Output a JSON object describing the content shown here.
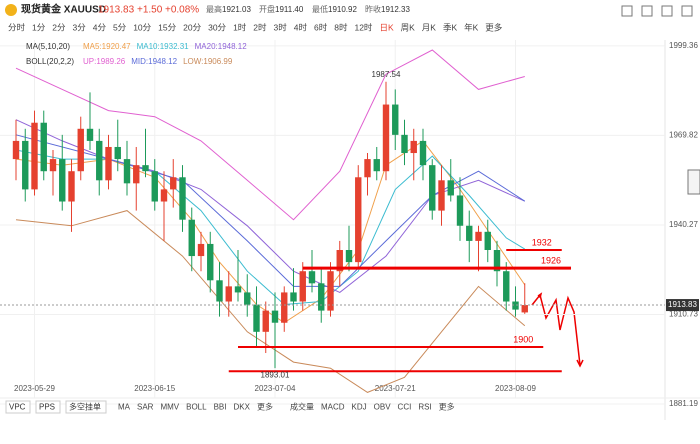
{
  "header": {
    "name": "现货黄金 XAUUSD",
    "price": "1913.83",
    "change": "+1.50",
    "pct": "+0.08%",
    "stats": [
      [
        "最高",
        "1921.03"
      ],
      [
        "开盘",
        "1911.40"
      ],
      [
        "最低",
        "1910.92"
      ],
      [
        "昨收",
        "1912.33"
      ]
    ]
  },
  "periods": [
    "分时",
    "1分",
    "2分",
    "3分",
    "4分",
    "5分",
    "10分",
    "15分",
    "20分",
    "30分",
    "1时",
    "2时",
    "3时",
    "4时",
    "6时",
    "8时",
    "12时",
    "日K",
    "周K",
    "月K",
    "季K",
    "年K",
    "更多"
  ],
  "active_period": "日K",
  "bottom_left": [
    "VPC",
    "PPS",
    "多空挂单"
  ],
  "bottom_main": [
    "MA",
    "SAR",
    "MMV",
    "BOLL",
    "BBI",
    "DKX",
    "更多"
  ],
  "bottom_sub": [
    "成交量",
    "MACD",
    "KDJ",
    "OBV",
    "CCI",
    "RSI",
    "更多"
  ],
  "chart_data": {
    "type": "candlestick",
    "legend_groups": [
      "MA(5,10,20)",
      "BOLL(20,2,2)"
    ],
    "categories": [
      null,
      null,
      "2023-05-29",
      null,
      null,
      null,
      null,
      null,
      null,
      null,
      null,
      null,
      null,
      null,
      null,
      "2023-06-15",
      null,
      null,
      null,
      null,
      null,
      null,
      null,
      null,
      null,
      null,
      null,
      null,
      "2023-07-04",
      null,
      null,
      null,
      null,
      null,
      null,
      null,
      null,
      null,
      null,
      null,
      null,
      "2023-07-21",
      null,
      null,
      null,
      null,
      null,
      null,
      null,
      null,
      null,
      null,
      null,
      null,
      "2023-08-09",
      null
    ],
    "ohlc": [
      [
        1962,
        1975,
        1955,
        1968
      ],
      [
        1968,
        1972,
        1948,
        1952
      ],
      [
        1952,
        1978,
        1950,
        1974
      ],
      [
        1974,
        1978,
        1955,
        1958
      ],
      [
        1958,
        1965,
        1950,
        1962
      ],
      [
        1962,
        1970,
        1945,
        1948
      ],
      [
        1948,
        1962,
        1938,
        1958
      ],
      [
        1958,
        1976,
        1955,
        1972
      ],
      [
        1972,
        1984,
        1965,
        1968
      ],
      [
        1968,
        1972,
        1950,
        1955
      ],
      [
        1955,
        1970,
        1952,
        1966
      ],
      [
        1966,
        1975,
        1958,
        1962
      ],
      [
        1962,
        1968,
        1950,
        1954
      ],
      [
        1954,
        1966,
        1945,
        1960
      ],
      [
        1960,
        1972,
        1956,
        1958
      ],
      [
        1958,
        1962,
        1945,
        1948
      ],
      [
        1948,
        1958,
        1935,
        1952
      ],
      [
        1952,
        1962,
        1946,
        1956
      ],
      [
        1956,
        1960,
        1938,
        1942
      ],
      [
        1942,
        1946,
        1925,
        1930
      ],
      [
        1930,
        1938,
        1925,
        1934
      ],
      [
        1934,
        1938,
        1918,
        1922
      ],
      [
        1922,
        1928,
        1910,
        1915
      ],
      [
        1915,
        1925,
        1910,
        1920
      ],
      [
        1920,
        1932,
        1915,
        1918
      ],
      [
        1918,
        1924,
        1910,
        1914
      ],
      [
        1914,
        1920,
        1900,
        1905
      ],
      [
        1905,
        1915,
        1898,
        1912
      ],
      [
        1912,
        1918,
        1893.01,
        1908
      ],
      [
        1908,
        1920,
        1905,
        1918
      ],
      [
        1918,
        1926,
        1912,
        1915
      ],
      [
        1915,
        1928,
        1912,
        1925
      ],
      [
        1925,
        1932,
        1918,
        1921
      ],
      [
        1921,
        1926,
        1908,
        1912
      ],
      [
        1912,
        1928,
        1910,
        1925
      ],
      [
        1925,
        1935,
        1920,
        1932
      ],
      [
        1932,
        1940,
        1925,
        1928
      ],
      [
        1928,
        1960,
        1926,
        1956
      ],
      [
        1956,
        1964,
        1950,
        1962
      ],
      [
        1962,
        1966,
        1955,
        1958
      ],
      [
        1958,
        1987.54,
        1955,
        1980
      ],
      [
        1980,
        1985,
        1965,
        1970
      ],
      [
        1970,
        1975,
        1960,
        1964
      ],
      [
        1964,
        1972,
        1955,
        1968
      ],
      [
        1968,
        1972,
        1955,
        1960
      ],
      [
        1960,
        1962,
        1942,
        1945
      ],
      [
        1945,
        1960,
        1940,
        1955
      ],
      [
        1955,
        1962,
        1948,
        1950
      ],
      [
        1950,
        1956,
        1935,
        1940
      ],
      [
        1940,
        1945,
        1928,
        1935
      ],
      [
        1935,
        1940,
        1925,
        1938
      ],
      [
        1938,
        1942,
        1928,
        1932
      ],
      [
        1932,
        1935,
        1920,
        1925
      ],
      [
        1925,
        1928,
        1912,
        1915
      ],
      [
        1915,
        1920,
        1910,
        1912.33
      ],
      [
        1911.4,
        1921.03,
        1910.92,
        1913.83
      ]
    ],
    "up_color": "#e5412f",
    "down_color": "#1d9a5a",
    "lines": [
      {
        "name": "MA5:1920.47",
        "group": 0,
        "color": "#f0a04b",
        "x": [
          0,
          5,
          10,
          15,
          19,
          22,
          26,
          29,
          33,
          37,
          40,
          44,
          48,
          52,
          55
        ],
        "values": [
          1962,
          1960,
          1962,
          1956,
          1942,
          1928,
          1914,
          1908,
          1916,
          1932,
          1960,
          1968,
          1952,
          1934,
          1920.47
        ]
      },
      {
        "name": "MA10:1932.31",
        "group": 0,
        "color": "#3cbcd0",
        "x": [
          0,
          5,
          10,
          15,
          20,
          25,
          29,
          33,
          37,
          41,
          45,
          49,
          53,
          55
        ],
        "values": [
          1965,
          1962,
          1962,
          1958,
          1945,
          1925,
          1914,
          1915,
          1925,
          1952,
          1963,
          1950,
          1936,
          1932.31
        ]
      },
      {
        "name": "MA20:1948.12",
        "group": 0,
        "color": "#9064d8",
        "x": [
          0,
          5,
          10,
          15,
          20,
          25,
          30,
          35,
          40,
          45,
          50,
          55
        ],
        "values": [
          1975,
          1968,
          1962,
          1958,
          1952,
          1940,
          1925,
          1918,
          1930,
          1950,
          1955,
          1948.12
        ]
      },
      {
        "name": "UP:1989.26",
        "group": 1,
        "color": "#e060d0",
        "x": [
          0,
          5,
          10,
          15,
          20,
          25,
          30,
          35,
          40,
          45,
          50,
          55
        ],
        "values": [
          1992,
          1985,
          1978,
          1976,
          1968,
          1955,
          1942,
          1958,
          1990,
          1998,
          1985,
          1989.26
        ]
      },
      {
        "name": "MID:1948.12",
        "group": 1,
        "color": "#5b6bd8",
        "x": [
          0,
          10,
          18,
          25,
          30,
          35,
          40,
          45,
          50,
          55
        ],
        "values": [
          1970,
          1962,
          1955,
          1935,
          1920,
          1920,
          1935,
          1950,
          1958,
          1948.12
        ]
      },
      {
        "name": "LOW:1906.99",
        "group": 1,
        "color": "#c98a5a",
        "x": [
          0,
          6,
          12,
          18,
          25,
          30,
          34,
          38,
          42,
          46,
          50,
          55
        ],
        "values": [
          1942,
          1940,
          1945,
          1930,
          1905,
          1895,
          1893,
          1885,
          1890,
          1905,
          1920,
          1906.99
        ]
      }
    ],
    "last_price": {
      "value": 1913.83,
      "label": "1913.83"
    },
    "levels": [
      {
        "value": 1932,
        "label": "1932",
        "from": 53,
        "to": 59
      },
      {
        "value": 1926,
        "label": "1926",
        "from": 31,
        "to": 60
      },
      {
        "value": 1900,
        "label": "1900",
        "from": 24,
        "to": 57
      },
      {
        "value": 1892,
        "from": 23,
        "to": 59
      }
    ],
    "annotations": [
      {
        "value": 1987.54,
        "label": "1987.54",
        "index": 40
      },
      {
        "value": 1893.01,
        "label": "1893.01",
        "index": 28
      }
    ],
    "ylim": [
      1879.2,
      2001.3
    ],
    "yticks": [
      1999.36,
      1969.82,
      1940.27,
      1910.73,
      1881.19
    ],
    "grid": true
  }
}
